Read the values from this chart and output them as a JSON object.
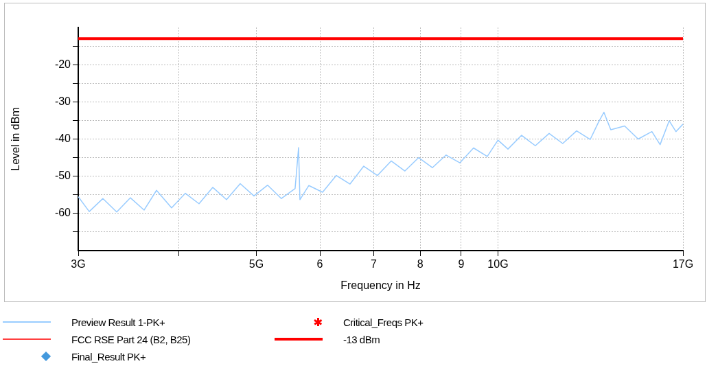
{
  "chart_data": {
    "type": "line",
    "xlabel": "Frequency in Hz",
    "ylabel": "Level in dBm",
    "log": "x",
    "grid": true,
    "legend": "bottom",
    "xlim": [
      3,
      17
    ],
    "xticks": [
      {
        "value": 3,
        "label": "3G"
      },
      {
        "value": 4,
        "label": null
      },
      {
        "value": 5,
        "label": "5G"
      },
      6,
      7,
      8,
      9,
      {
        "value": 10,
        "label": "10G"
      },
      {
        "value": 17,
        "label": "17G"
      }
    ],
    "ylim": [
      -70,
      -10
    ],
    "yticks": [
      {
        "value": -65,
        "label": null
      },
      -60,
      {
        "value": -55,
        "label": null
      },
      -50,
      {
        "value": -45,
        "label": null
      },
      -40,
      {
        "value": -35,
        "label": null
      },
      -30,
      {
        "value": -25,
        "label": null
      },
      -20,
      {
        "value": -15,
        "label": null
      }
    ],
    "series": [
      {
        "name": "Preview Result 1-PK+",
        "color": "#99ccff",
        "marker": "none",
        "x": [
          3.0,
          3.096,
          3.22,
          3.35,
          3.484,
          3.624,
          3.755,
          3.921,
          4.079,
          4.242,
          4.412,
          4.59,
          4.774,
          4.966,
          5.165,
          5.372,
          5.588,
          5.644,
          5.666,
          5.813,
          6.046,
          6.289,
          6.541,
          6.804,
          7.077,
          7.361,
          7.657,
          7.965,
          8.284,
          8.617,
          8.963,
          9.323,
          9.697,
          10.0,
          10.29,
          10.7,
          11.13,
          11.58,
          12.04,
          12.53,
          13.03,
          13.34,
          13.55,
          13.82,
          14.38,
          14.95,
          15.55,
          15.92,
          16.34,
          16.66,
          17.0
        ],
        "values": [
          -55.5,
          -59.5,
          -56,
          -59.6,
          -55.8,
          -59.1,
          -53.8,
          -58.5,
          -54.6,
          -57.4,
          -53,
          -56.3,
          -52,
          -55.3,
          -52.4,
          -56,
          -53.3,
          -42.3,
          -56.3,
          -52.5,
          -54.3,
          -49.8,
          -52.1,
          -47.3,
          -49.8,
          -45.9,
          -48.6,
          -45,
          -47.7,
          -44.3,
          -46.4,
          -42.4,
          -44.7,
          -40.3,
          -42.7,
          -39,
          -41.8,
          -38.5,
          -41.2,
          -37.8,
          -40.1,
          -35.5,
          -32.8,
          -37.5,
          -36.5,
          -40,
          -38,
          -41.5,
          -35.1,
          -38,
          -36
        ]
      },
      {
        "name": "FCC RSE Part 24 (B2, B25)",
        "color": "#ff4040",
        "marker": "none"
      },
      {
        "name": "Final_Result PK+",
        "type": "scatter",
        "color": "#4499dd",
        "marker": "diamond"
      },
      {
        "name": "Critical_Freqs PK+",
        "type": "scatter",
        "color": "#ff0000",
        "marker": "star"
      }
    ],
    "ref_lines": [
      {
        "axis": "y",
        "value": -13,
        "label": "-13 dBm",
        "color": "#ff0000"
      }
    ]
  }
}
